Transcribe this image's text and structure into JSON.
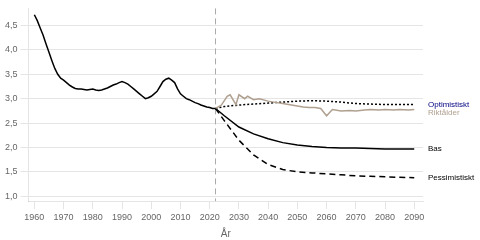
{
  "chart_data": {
    "type": "line",
    "xlabel": "År",
    "xlim": [
      1958,
      2093
    ],
    "xticks": [
      1960,
      1970,
      1980,
      1990,
      2000,
      2010,
      2020,
      2030,
      2040,
      2050,
      2060,
      2070,
      2080,
      2090
    ],
    "ylim": [
      0.9,
      4.85
    ],
    "yticks": [
      {
        "value": 1.0,
        "label": "1,0"
      },
      {
        "value": 1.5,
        "label": "1,5"
      },
      {
        "value": 2.0,
        "label": "2,0"
      },
      {
        "value": 2.5,
        "label": "2,5"
      },
      {
        "value": 3.0,
        "label": "3,0"
      },
      {
        "value": 3.5,
        "label": "3,5"
      },
      {
        "value": 4.0,
        "label": "4,0"
      },
      {
        "value": 4.5,
        "label": "4,5"
      }
    ],
    "grid": "y",
    "series": [
      {
        "x": [
          1960,
          1961,
          1962,
          1963,
          1964,
          1965,
          1966,
          1967,
          1968,
          1969,
          1970,
          1971,
          1972,
          1973,
          1974,
          1975,
          1976,
          1977,
          1978,
          1979,
          1980,
          1981,
          1982,
          1983,
          1984,
          1985,
          1986,
          1987,
          1988,
          1989,
          1990,
          1991,
          1992,
          1993,
          1994,
          1995,
          1996,
          1997,
          1998,
          1999,
          2000,
          2001,
          2002,
          2003,
          2004,
          2005,
          2006,
          2007,
          2008,
          2009,
          2010,
          2011,
          2012,
          2013,
          2014,
          2015,
          2016,
          2017,
          2018,
          2019,
          2020,
          2021,
          2022
        ],
        "values": [
          4.72,
          4.6,
          4.45,
          4.3,
          4.12,
          3.95,
          3.78,
          3.62,
          3.5,
          3.42,
          3.38,
          3.33,
          3.28,
          3.24,
          3.21,
          3.2,
          3.2,
          3.19,
          3.18,
          3.19,
          3.2,
          3.18,
          3.17,
          3.18,
          3.2,
          3.22,
          3.25,
          3.28,
          3.3,
          3.33,
          3.35,
          3.33,
          3.3,
          3.25,
          3.2,
          3.15,
          3.1,
          3.05,
          3.0,
          3.02,
          3.05,
          3.1,
          3.15,
          3.25,
          3.35,
          3.4,
          3.42,
          3.38,
          3.33,
          3.2,
          3.1,
          3.05,
          3.0,
          2.98,
          2.95,
          2.92,
          2.9,
          2.87,
          2.85,
          2.83,
          2.82,
          2.8,
          2.8
        ],
        "color": "#000000",
        "line_style": "solid"
      },
      {
        "x": [
          2022,
          2024,
          2026,
          2027,
          2029,
          2030,
          2032,
          2033,
          2035,
          2037,
          2040,
          2042,
          2045,
          2048,
          2050,
          2052,
          2054,
          2056,
          2058,
          2060,
          2062,
          2065,
          2068,
          2070,
          2073,
          2075,
          2078,
          2080,
          2083,
          2085,
          2088,
          2090
        ],
        "values": [
          2.8,
          2.87,
          3.05,
          3.08,
          2.88,
          3.08,
          3.0,
          3.05,
          2.98,
          3.0,
          2.95,
          2.93,
          2.9,
          2.87,
          2.85,
          2.83,
          2.82,
          2.82,
          2.8,
          2.65,
          2.78,
          2.75,
          2.76,
          2.75,
          2.77,
          2.78,
          2.77,
          2.78,
          2.77,
          2.78,
          2.77,
          2.78
        ],
        "color": "#b0a090",
        "line_style": "solid"
      },
      {
        "x": [
          2022,
          2025,
          2030,
          2035,
          2040,
          2045,
          2050,
          2055,
          2060,
          2065,
          2070,
          2075,
          2080,
          2085,
          2090
        ],
        "values": [
          2.8,
          2.84,
          2.87,
          2.89,
          2.91,
          2.93,
          2.95,
          2.96,
          2.95,
          2.93,
          2.9,
          2.89,
          2.88,
          2.88,
          2.88
        ],
        "color": "#000000",
        "line_style": "dotted"
      },
      {
        "x": [
          2022,
          2025,
          2030,
          2035,
          2040,
          2045,
          2050,
          2055,
          2060,
          2065,
          2070,
          2075,
          2080,
          2085,
          2090
        ],
        "values": [
          2.8,
          2.65,
          2.42,
          2.28,
          2.18,
          2.1,
          2.05,
          2.02,
          2.0,
          1.99,
          1.99,
          1.98,
          1.97,
          1.97,
          1.97
        ],
        "color": "#000000",
        "line_style": "solid"
      },
      {
        "x": [
          2022,
          2025,
          2030,
          2035,
          2040,
          2045,
          2050,
          2055,
          2060,
          2065,
          2070,
          2075,
          2080,
          2085,
          2090
        ],
        "values": [
          2.8,
          2.55,
          2.15,
          1.85,
          1.65,
          1.55,
          1.5,
          1.48,
          1.46,
          1.44,
          1.42,
          1.41,
          1.4,
          1.39,
          1.38
        ],
        "color": "#000000",
        "line_style": "dashed"
      }
    ],
    "reference_lines": [
      {
        "x": 2022,
        "color": "#aaaaaa",
        "line_style": "dashed"
      }
    ],
    "annotations": [
      {
        "text": "Optimistiskt",
        "y": 2.88,
        "color": "#000080"
      },
      {
        "text": "Riktålder",
        "y": 2.72,
        "color": "#b0a090"
      },
      {
        "text": "Bas",
        "y": 1.97,
        "color": "#000000"
      },
      {
        "text": "Pessimistiskt",
        "y": 1.38,
        "color": "#000000"
      }
    ]
  }
}
